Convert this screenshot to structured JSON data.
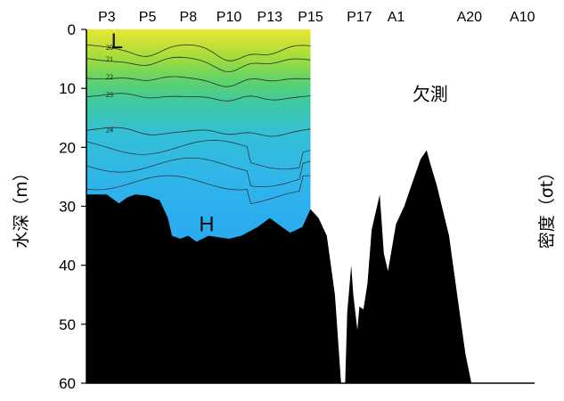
{
  "chart_data": {
    "type": "area",
    "title": "",
    "ylabel": "水深（m）",
    "ylabel_right": "密度（σt）",
    "yticks": [
      "0",
      "10",
      "20",
      "30",
      "40",
      "50",
      "60"
    ],
    "ylim": [
      60,
      0
    ],
    "stations": [
      {
        "name": "P3",
        "x": 0
      },
      {
        "name": "P5",
        "x": 1
      },
      {
        "name": "P8",
        "x": 2
      },
      {
        "name": "P10",
        "x": 3
      },
      {
        "name": "P13",
        "x": 4
      },
      {
        "name": "P15",
        "x": 5
      },
      {
        "name": "P17",
        "x": 6.2
      },
      {
        "name": "A1",
        "x": 7.1
      },
      {
        "name": "A20",
        "x": 8.9
      },
      {
        "name": "A10",
        "x": 10.2
      }
    ],
    "xlim": [
      -0.5,
      10.5
    ],
    "seabed": {
      "x": [
        0,
        0.1,
        0.3,
        0.5,
        0.7,
        1.0,
        1.3,
        1.5,
        1.6,
        1.8,
        2.0,
        2.2,
        2.5,
        3.0,
        3.3,
        3.7,
        4.0,
        4.3,
        4.5,
        4.8,
        5.0,
        5.2,
        5.4,
        5.6,
        5.75,
        5.85,
        5.9,
        6.0,
        6.05,
        6.15,
        6.2,
        6.3,
        6.4,
        6.5,
        6.7,
        6.8,
        6.9,
        7.1,
        7.3,
        7.5,
        7.7,
        7.85,
        7.95,
        8.1,
        8.4,
        8.6,
        8.8,
        8.95
      ],
      "depth": [
        28,
        28.5,
        29.5,
        28.5,
        28.0,
        28.2,
        29.0,
        32.0,
        35.0,
        35.5,
        35.0,
        36.0,
        35.0,
        35.5,
        35.0,
        33.5,
        32.0,
        33.5,
        34.5,
        33.5,
        30.5,
        32.0,
        35.0,
        45.0,
        60.0,
        60.0,
        48.0,
        40.0,
        45.0,
        51.0,
        47.0,
        47.5,
        43.0,
        34.0,
        28.0,
        38.0,
        41.0,
        33.0,
        30.0,
        26.0,
        22.0,
        20.5,
        23.0,
        26.5,
        35.0,
        45.0,
        55.0,
        60.0
      ]
    },
    "density_contours": [
      {
        "value": 20,
        "depth": 3
      },
      {
        "value": 21,
        "depth": 5
      },
      {
        "value": 22,
        "depth": 8
      },
      {
        "value": 23,
        "depth": 11
      },
      {
        "value": 24,
        "depth": 17
      }
    ],
    "annotations": [
      {
        "text": "L",
        "x": 0.25,
        "depth": 2
      },
      {
        "text": "H",
        "x": 2.45,
        "depth": 33
      },
      {
        "text": "欠測",
        "x": 7.5,
        "depth": 12
      }
    ]
  }
}
